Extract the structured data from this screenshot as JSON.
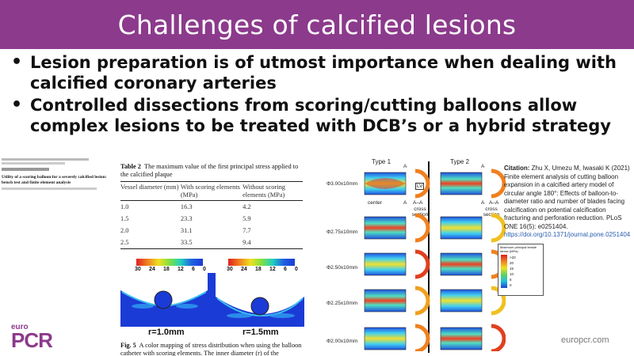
{
  "slide": {
    "title": "Challenges of calcified lesions",
    "bullets": [
      "Lesion preparation is of utmost importance when dealing with calcified coronary arteries",
      "Controlled dissections from scoring/cutting balloons allow complex lesions to be treated with DCB’s or a hybrid strategy"
    ],
    "bullet_glyph": "•"
  },
  "paper": {
    "title": "Utility of a scoring balloon for a severely calcified lesion: bench test and finite element analysis"
  },
  "table2": {
    "label": "Table 2",
    "caption": "The maximum value of the first principal stress applied to the calcified plaque",
    "headers": [
      "Vessel diameter (mm)",
      "With scoring elements (MPa)",
      "Without scoring elements (MPa)"
    ],
    "rows": [
      [
        "1.0",
        "16.3",
        "4.2"
      ],
      [
        "1.5",
        "23.3",
        "5.9"
      ],
      [
        "2.0",
        "31.1",
        "7.7"
      ],
      [
        "2.5",
        "33.5",
        "9.4"
      ]
    ]
  },
  "fe_figure": {
    "colorbar_ticks": [
      "30",
      "24",
      "18",
      "12",
      "6",
      "0"
    ],
    "panel_labels": [
      "r=1.0mm",
      "r=1.5mm"
    ],
    "caption_label": "Fig. 5",
    "caption": "A color mapping of stress distribution when using the balloon catheter with scoring elements. The inner diameter (r) of the"
  },
  "balloon_figure": {
    "type_labels": [
      "Type 1",
      "Type 2"
    ],
    "rows": [
      "Φ3.00x10mm",
      "Φ2.75x10mm",
      "Φ2.50x10mm",
      "Φ2.25x10mm",
      "Φ2.00x10mm"
    ],
    "marker_a": "A",
    "center_label": "center",
    "aa_label": "A–A",
    "cross_section_label": "cross section",
    "lv_label": "LV"
  },
  "citation": {
    "label": "Citation:",
    "text": "Zhu X, Umezu M, Iwasaki K (2021) Finite element analysis of cutting balloon expansion in a calcified artery model of circular angle 180°: Effects of balloon-to-diameter ratio and number of blades facing calcification on potential calcification fracturing and perforation reduction. PLoS ONE 16(5): e0251404.",
    "doi": "https://doi.org/10.1371/journal.pone.0251404"
  },
  "stress_legend": {
    "title": "Maximum principal tensile stress (MPa)",
    "values": [
      ">20",
      "20",
      "15",
      "10",
      "5",
      "0"
    ]
  },
  "footer": {
    "logo_small": "euro",
    "logo_big": "PCR",
    "site": "europcr.com"
  },
  "colors": {
    "accent": "#8c3a8c",
    "fe_background": "#1b3bd6"
  }
}
